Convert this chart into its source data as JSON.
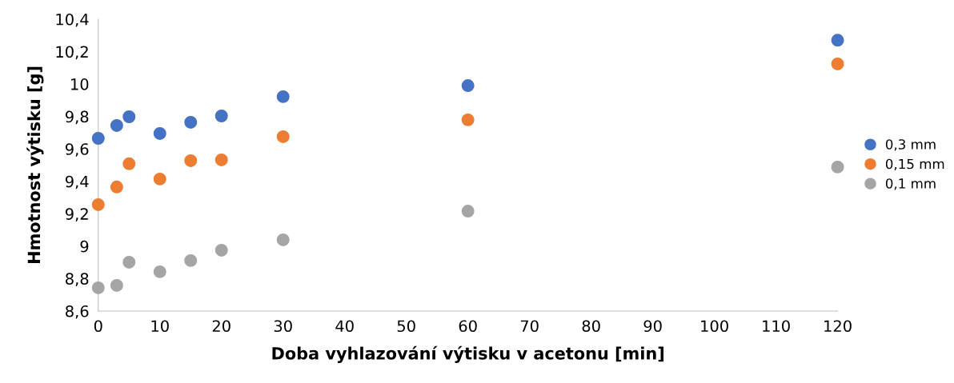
{
  "chart_data": {
    "type": "scatter",
    "xlabel": "Doba vyhlazování výtisku v acetonu [min]",
    "ylabel": "Hmotnost výtisku [g]",
    "x": [
      0,
      3,
      5,
      10,
      15,
      20,
      30,
      60,
      120
    ],
    "series": [
      {
        "name": "0,3 mm",
        "color": "#4472c4",
        "values": [
          9.665,
          9.744,
          9.798,
          9.695,
          9.764,
          9.803,
          9.922,
          9.99,
          10.27
        ]
      },
      {
        "name": "0,15 mm",
        "color": "#ed7d31",
        "values": [
          9.256,
          9.365,
          9.508,
          9.414,
          9.527,
          9.532,
          9.675,
          9.779,
          10.124
        ]
      },
      {
        "name": "0,1 mm",
        "color": "#a5a5a5",
        "values": [
          8.743,
          8.758,
          8.901,
          8.842,
          8.911,
          8.975,
          9.039,
          9.216,
          9.488
        ]
      }
    ],
    "xlim": [
      0,
      120
    ],
    "xticks": [
      0,
      10,
      20,
      30,
      40,
      50,
      60,
      70,
      80,
      90,
      100,
      110,
      120
    ],
    "ylim": [
      8.6,
      10.4
    ],
    "yticks": [
      {
        "value": 8.6,
        "label": "8,6"
      },
      {
        "value": 8.8,
        "label": "8,8"
      },
      {
        "value": 9,
        "label": "9"
      },
      {
        "value": 9.2,
        "label": "9,2"
      },
      {
        "value": 9.4,
        "label": "9,4"
      },
      {
        "value": 9.6,
        "label": "9,6"
      },
      {
        "value": 9.8,
        "label": "9,8"
      },
      {
        "value": 10,
        "label": "10"
      },
      {
        "value": 10.2,
        "label": "10,2"
      },
      {
        "value": 10.4,
        "label": "10,4"
      }
    ],
    "grid": false,
    "legend": "right",
    "marker": "circle"
  }
}
